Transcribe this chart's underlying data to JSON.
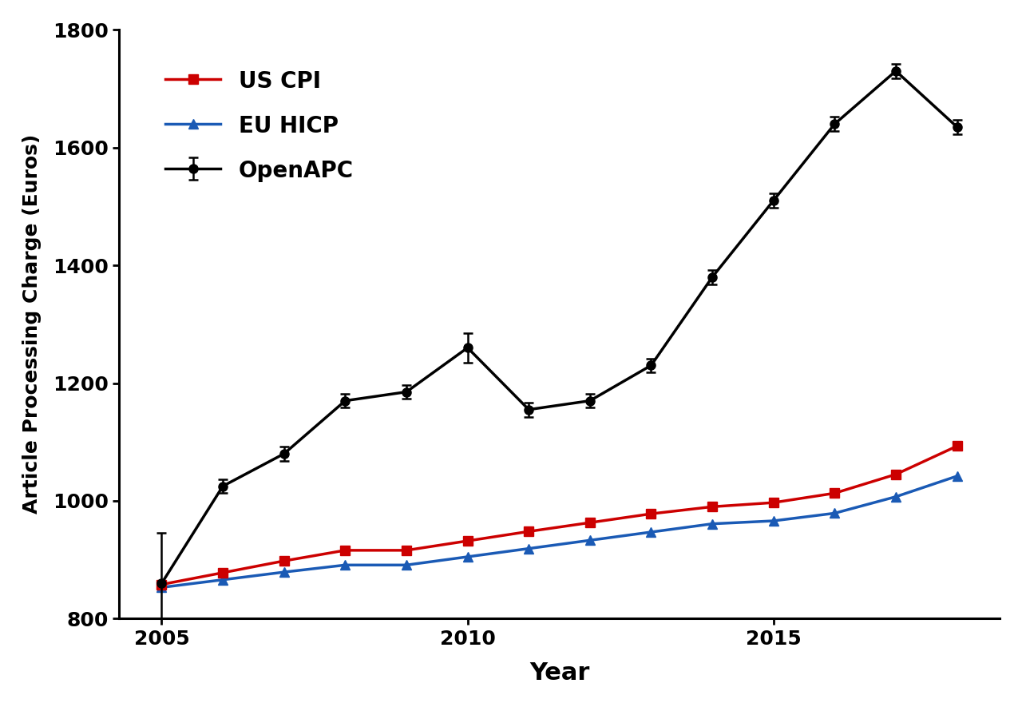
{
  "years": [
    2005,
    2006,
    2007,
    2008,
    2009,
    2010,
    2011,
    2012,
    2013,
    2014,
    2015,
    2016,
    2017,
    2018
  ],
  "openapc": [
    860,
    1025,
    1080,
    1170,
    1185,
    1260,
    1155,
    1170,
    1230,
    1380,
    1510,
    1640,
    1730,
    1635
  ],
  "openapc_err": [
    85,
    12,
    12,
    12,
    12,
    25,
    12,
    12,
    12,
    12,
    12,
    12,
    12,
    12
  ],
  "us_cpi": [
    858,
    878,
    898,
    916,
    916,
    932,
    948,
    963,
    978,
    990,
    997,
    1013,
    1045,
    1093
  ],
  "eu_hicp": [
    853,
    866,
    879,
    891,
    891,
    905,
    919,
    933,
    947,
    961,
    966,
    979,
    1007,
    1042
  ],
  "openapc_color": "#000000",
  "us_cpi_color": "#cc0000",
  "eu_hicp_color": "#1a5ab5",
  "ylabel": "Article Processing Charge (Euros)",
  "xlabel": "Year",
  "ylim": [
    800,
    1800
  ],
  "xlim": [
    2004.3,
    2018.7
  ],
  "yticks": [
    800,
    1000,
    1200,
    1400,
    1600,
    1800
  ],
  "xticks": [
    2005,
    2010,
    2015
  ],
  "legend_labels": [
    "OpenAPC",
    "US CPI",
    "EU HICP"
  ],
  "linewidth": 2.5,
  "markersize": 8,
  "ylabel_fontsize": 18,
  "xlabel_fontsize": 22,
  "tick_labelsize": 18,
  "legend_fontsize": 20
}
